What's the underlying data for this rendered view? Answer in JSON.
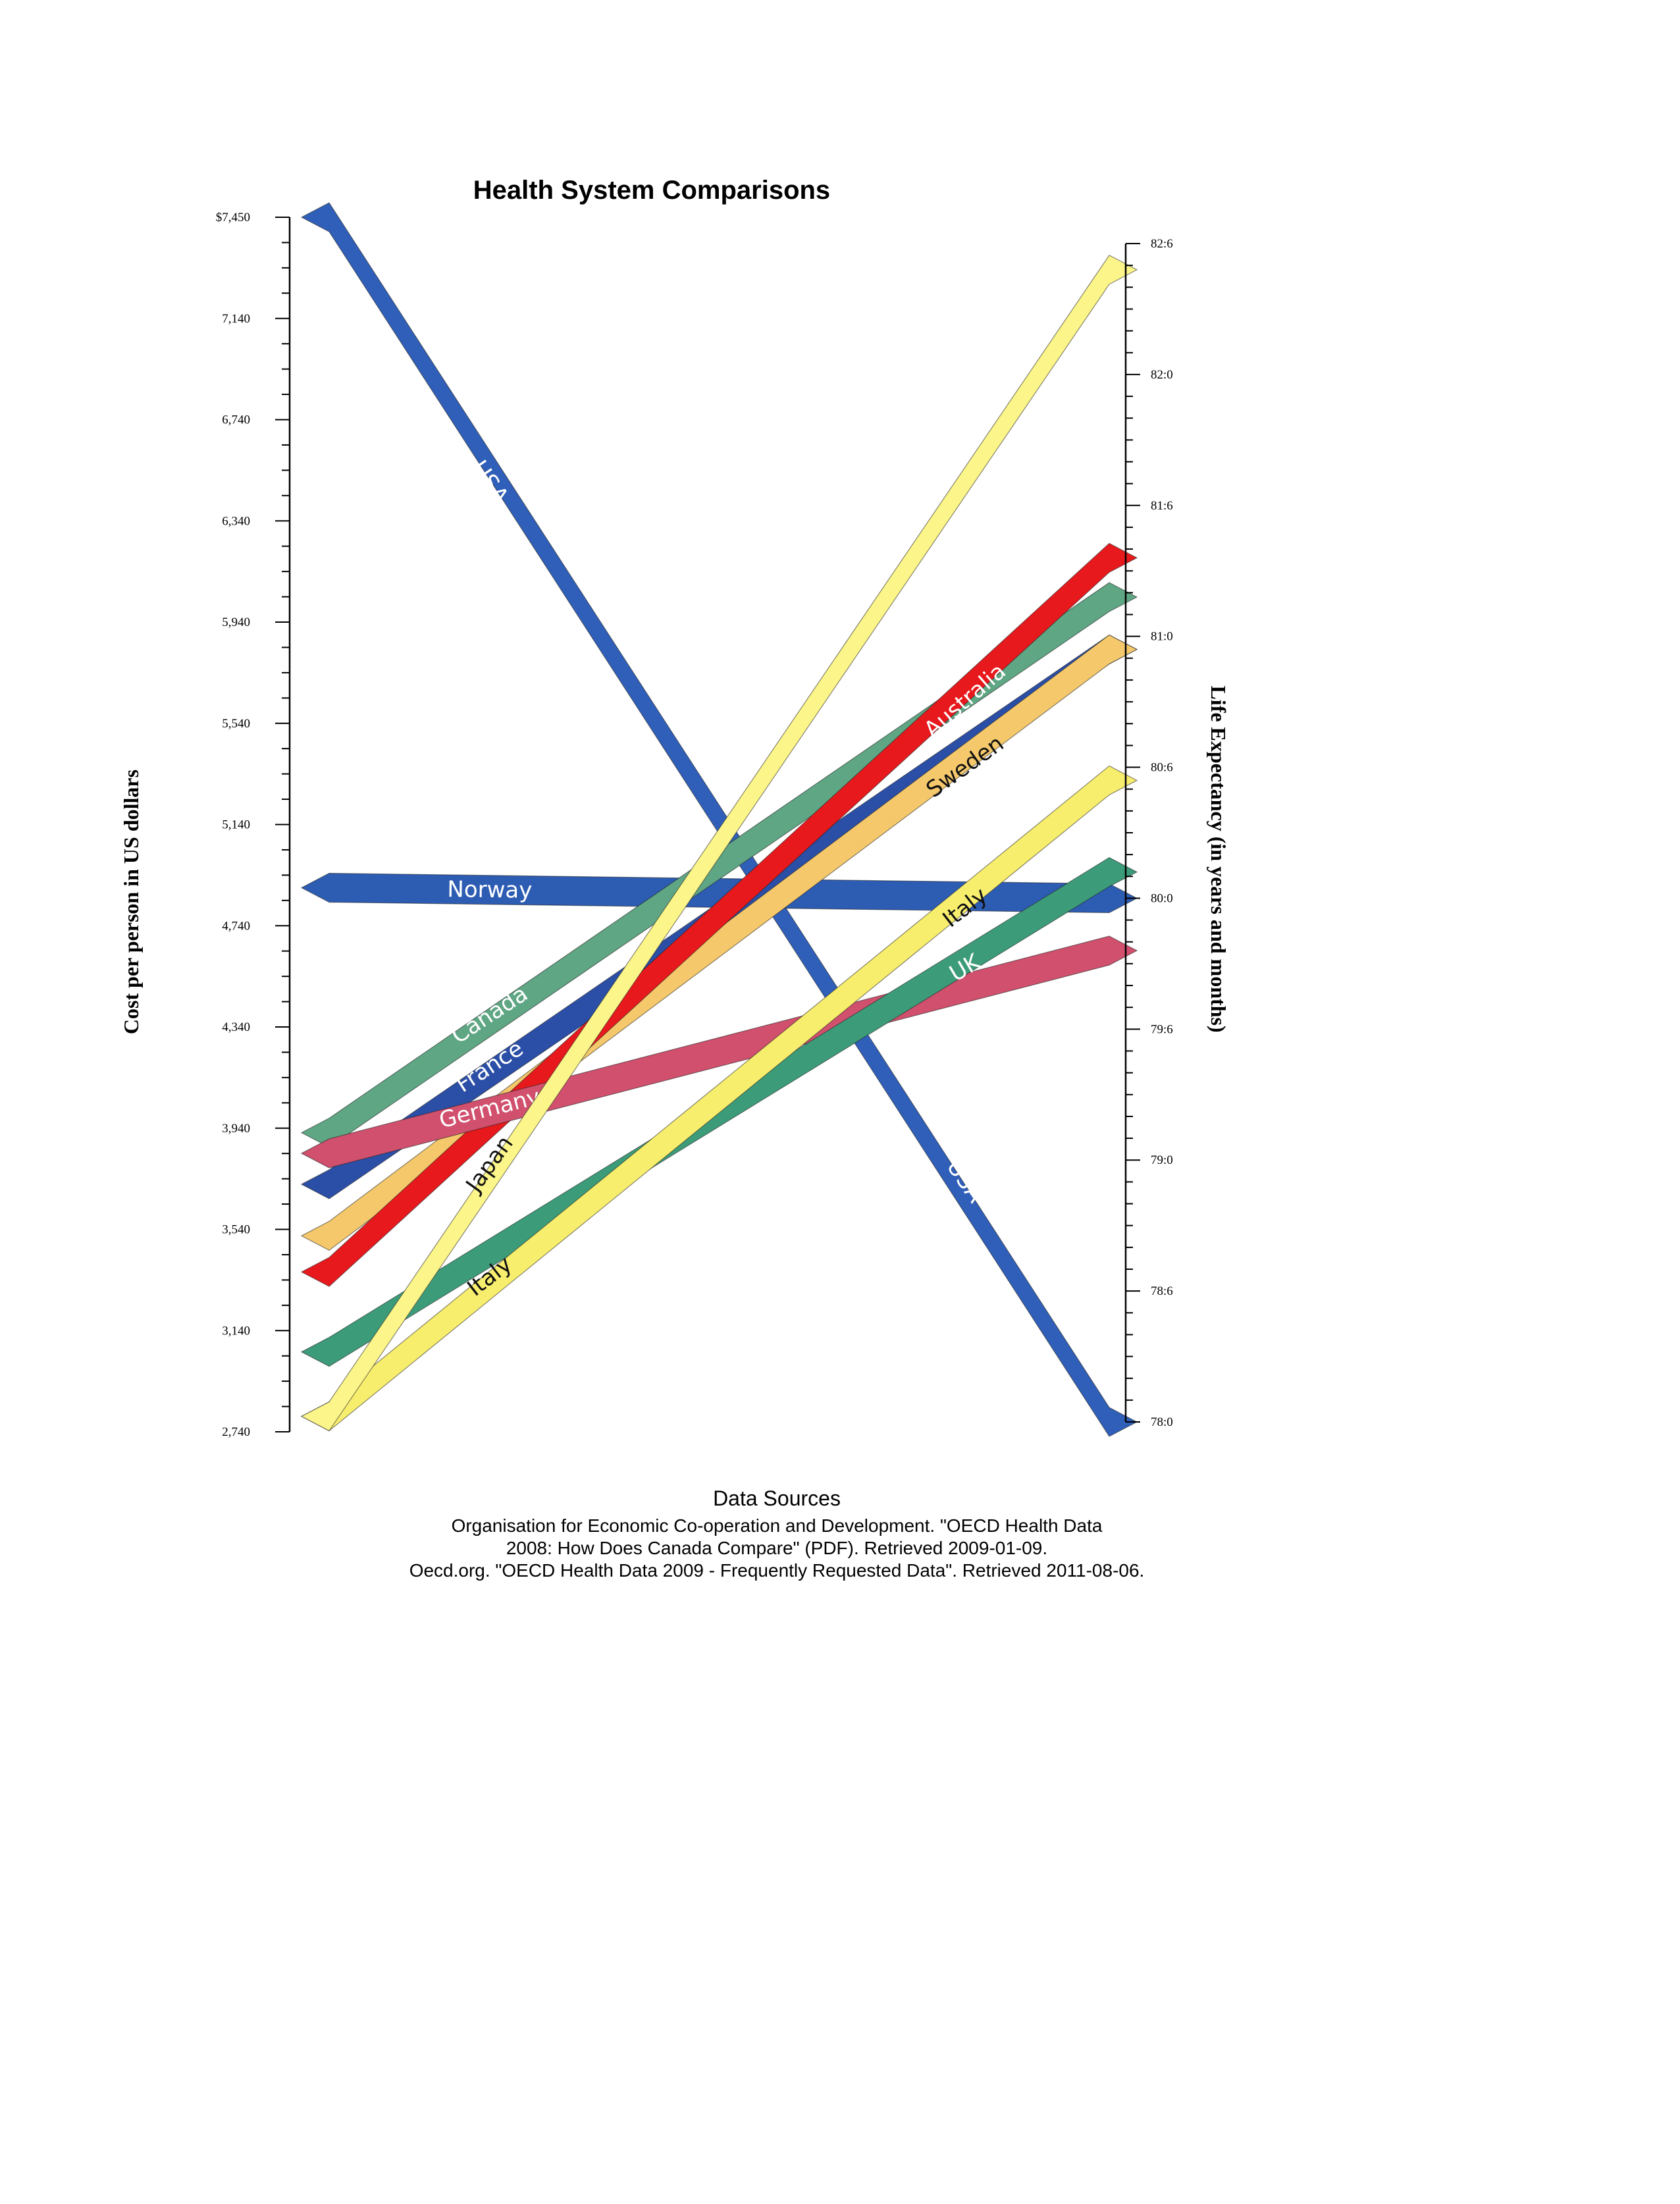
{
  "chart_data": {
    "type": "line",
    "title": "Health System Comparisons",
    "left_axis": {
      "label": "Cost per person in US dollars",
      "ticks": [
        "$7,450",
        "7,140",
        "6,740",
        "6,340",
        "5,940",
        "5,540",
        "5,140",
        "4,740",
        "4,340",
        "3,940",
        "3,540",
        "3,140",
        "2,740"
      ],
      "range": [
        2740,
        7450
      ]
    },
    "right_axis": {
      "label": "Life Expectancy (in years and months)",
      "ticks": [
        "82:6",
        "82:0",
        "81:6",
        "81:0",
        "80:6",
        "80:0",
        "79:6",
        "79:0",
        "78:6",
        "78:0"
      ],
      "range_years": [
        78.0,
        82.5
      ]
    },
    "series": [
      {
        "name": "USA",
        "cost": 7450,
        "life_expectancy_years": 78.0,
        "color": "#2f5fb8",
        "labels": [
          {
            "text": "USA",
            "end": "left"
          },
          {
            "text": "USA",
            "end": "right"
          }
        ]
      },
      {
        "name": "Norway",
        "cost": 4850,
        "life_expectancy_years": 80.0,
        "color": "#2d5cb3",
        "labels": [
          {
            "text": "Norway",
            "end": "left"
          }
        ]
      },
      {
        "name": "Canada",
        "cost": 3900,
        "life_expectancy_years": 81.15,
        "color": "#5fa684",
        "labels": [
          {
            "text": "Canada",
            "end": "left"
          }
        ]
      },
      {
        "name": "France",
        "cost": 3700,
        "life_expectancy_years": 80.95,
        "color": "#2b4ea6",
        "labels": [
          {
            "text": "France",
            "end": "left"
          }
        ]
      },
      {
        "name": "Sweden",
        "cost": 3500,
        "life_expectancy_years": 80.95,
        "color": "#f5c96b",
        "labels": [
          {
            "text": "Sweden",
            "end": "right"
          }
        ]
      },
      {
        "name": "Australia",
        "cost": 3360,
        "life_expectancy_years": 81.3,
        "color": "#e8191c",
        "labels": [
          {
            "text": "Australia",
            "end": "right"
          }
        ]
      },
      {
        "name": "Germany",
        "cost": 3820,
        "life_expectancy_years": 79.8,
        "color": "#d1506d",
        "labels": [
          {
            "text": "Germany",
            "end": "left"
          }
        ]
      },
      {
        "name": "UK",
        "cost": 3050,
        "life_expectancy_years": 80.1,
        "color": "#3c9c79",
        "labels": [
          {
            "text": "UK",
            "end": "right"
          }
        ]
      },
      {
        "name": "Italy",
        "cost": 2800,
        "life_expectancy_years": 80.45,
        "color": "#f8ee6e",
        "labels": [
          {
            "text": "Italy",
            "end": "left"
          },
          {
            "text": "Italy",
            "end": "right"
          }
        ]
      },
      {
        "name": "Japan",
        "cost": 2800,
        "life_expectancy_years": 82.4,
        "color": "#fcf58a",
        "labels": [
          {
            "text": "Japan",
            "end": "left"
          }
        ]
      }
    ]
  },
  "sources": {
    "heading": "Data Sources",
    "lines": [
      "Organisation for Economic Co-operation and Development. \"OECD Health Data",
      "2008: How Does Canada Compare\" (PDF). Retrieved 2009-01-09.",
      "Oecd.org.  \"OECD Health Data 2009 - Frequently Requested Data\".  Retrieved 2011-08-06."
    ]
  }
}
